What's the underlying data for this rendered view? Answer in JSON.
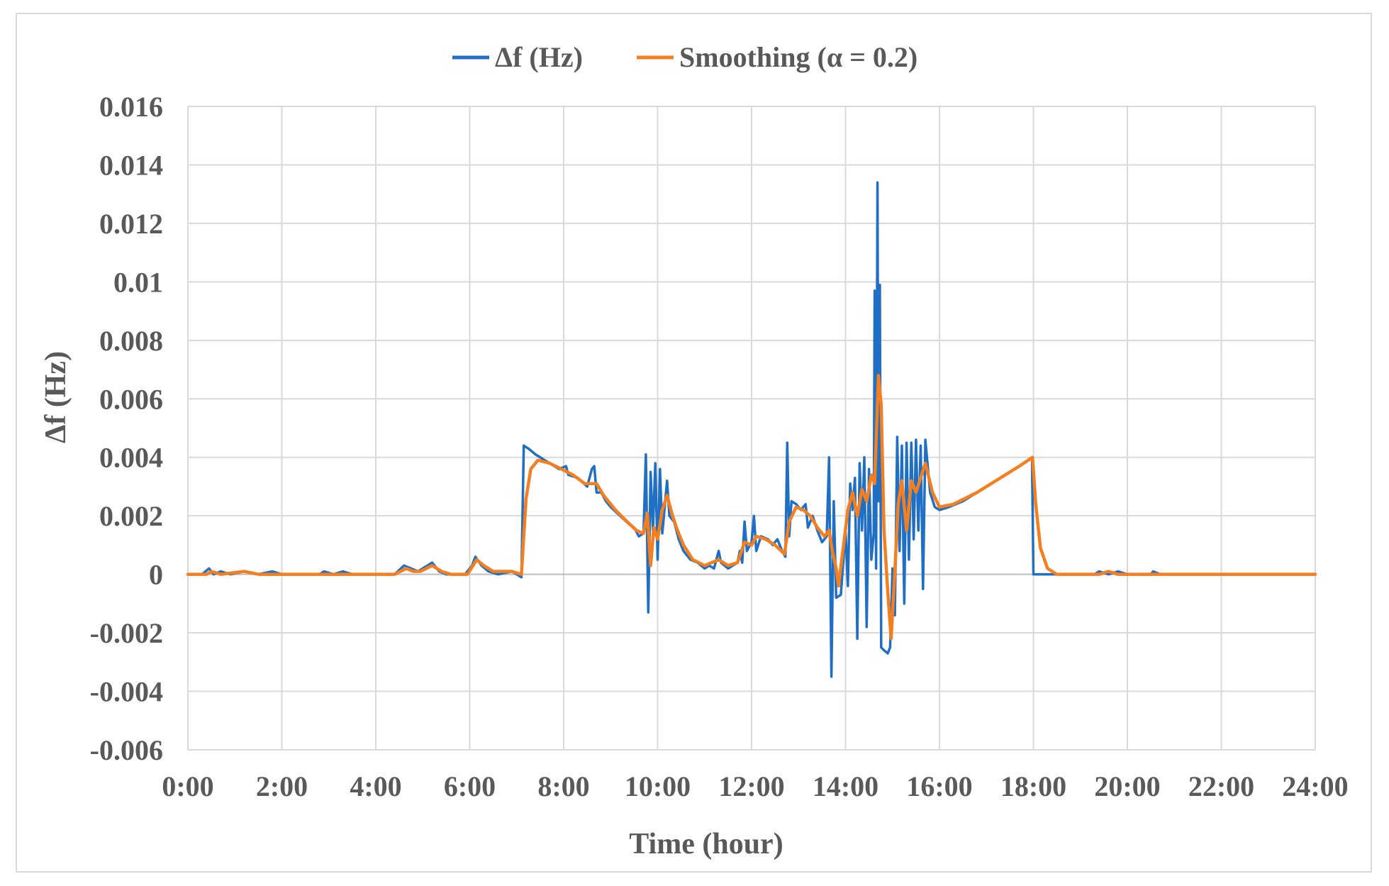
{
  "chart_data": {
    "type": "line",
    "title": "",
    "xlabel": "Time (hour)",
    "ylabel": "Δf (Hz)",
    "xlim": [
      0,
      24
    ],
    "ylim": [
      -0.006,
      0.016
    ],
    "x_ticks": [
      "0:00",
      "2:00",
      "4:00",
      "6:00",
      "8:00",
      "10:00",
      "12:00",
      "14:00",
      "16:00",
      "18:00",
      "20:00",
      "22:00",
      "24:00"
    ],
    "y_ticks": [
      "0.016",
      "0.014",
      "0.012",
      "0.01",
      "0.008",
      "0.006",
      "0.004",
      "0.002",
      "0",
      "-0.002",
      "-0.004",
      "-0.006"
    ],
    "y_tick_values": [
      0.016,
      0.014,
      0.012,
      0.01,
      0.008,
      0.006,
      0.004,
      0.002,
      0,
      -0.002,
      -0.004,
      -0.006
    ],
    "grid": true,
    "legend_position": "top",
    "series": [
      {
        "name": "Δf (Hz)",
        "color": "#1f6fc5",
        "points": [
          [
            0,
            0
          ],
          [
            0.3,
            0
          ],
          [
            0.45,
            0.0002
          ],
          [
            0.55,
            0
          ],
          [
            0.7,
            0.0001
          ],
          [
            0.9,
            0
          ],
          [
            1.2,
            0.0001
          ],
          [
            1.5,
            0
          ],
          [
            1.8,
            0.0001
          ],
          [
            2.0,
            0
          ],
          [
            2.8,
            0
          ],
          [
            2.9,
            0.0001
          ],
          [
            3.1,
            0
          ],
          [
            3.3,
            0.0001
          ],
          [
            3.5,
            0
          ],
          [
            4.0,
            0
          ],
          [
            4.4,
            0
          ],
          [
            4.6,
            0.0003
          ],
          [
            4.75,
            0.0002
          ],
          [
            4.9,
            0.0001
          ],
          [
            5.1,
            0.0003
          ],
          [
            5.2,
            0.0004
          ],
          [
            5.35,
            0.0001
          ],
          [
            5.5,
            0
          ],
          [
            5.9,
            0
          ],
          [
            6.05,
            0.0003
          ],
          [
            6.12,
            0.0006
          ],
          [
            6.25,
            0.0003
          ],
          [
            6.4,
            0.0001
          ],
          [
            6.6,
            0
          ],
          [
            6.9,
            0.0001
          ],
          [
            7.1,
            -0.0001
          ],
          [
            7.15,
            0.0044
          ],
          [
            7.25,
            0.0043
          ],
          [
            7.4,
            0.0041
          ],
          [
            7.6,
            0.0039
          ],
          [
            7.8,
            0.0037
          ],
          [
            7.9,
            0.0036
          ],
          [
            8.05,
            0.0037
          ],
          [
            8.1,
            0.0034
          ],
          [
            8.3,
            0.0033
          ],
          [
            8.5,
            0.003
          ],
          [
            8.6,
            0.0036
          ],
          [
            8.65,
            0.0037
          ],
          [
            8.7,
            0.0028
          ],
          [
            8.8,
            0.0028
          ],
          [
            8.9,
            0.0025
          ],
          [
            9.0,
            0.0023
          ],
          [
            9.2,
            0.002
          ],
          [
            9.4,
            0.0017
          ],
          [
            9.5,
            0.0016
          ],
          [
            9.6,
            0.0013
          ],
          [
            9.7,
            0.0014
          ],
          [
            9.75,
            0.0041
          ],
          [
            9.8,
            -0.0013
          ],
          [
            9.85,
            0.0035
          ],
          [
            9.9,
            0.0015
          ],
          [
            9.95,
            0.0038
          ],
          [
            10.0,
            0.0005
          ],
          [
            10.05,
            0.0036
          ],
          [
            10.1,
            0.0014
          ],
          [
            10.2,
            0.0032
          ],
          [
            10.25,
            0.002
          ],
          [
            10.35,
            0.0018
          ],
          [
            10.45,
            0.0012
          ],
          [
            10.55,
            0.0008
          ],
          [
            10.7,
            0.0005
          ],
          [
            10.85,
            0.0004
          ],
          [
            11.0,
            0.0002
          ],
          [
            11.1,
            0.0003
          ],
          [
            11.2,
            0.0002
          ],
          [
            11.3,
            0.0008
          ],
          [
            11.35,
            0.0004
          ],
          [
            11.5,
            0.0002
          ],
          [
            11.6,
            0.0003
          ],
          [
            11.7,
            0.0004
          ],
          [
            11.75,
            0.0008
          ],
          [
            11.8,
            0.0004
          ],
          [
            11.85,
            0.0018
          ],
          [
            11.9,
            0.0008
          ],
          [
            12.0,
            0.0011
          ],
          [
            12.05,
            0.002
          ],
          [
            12.1,
            0.0008
          ],
          [
            12.2,
            0.0013
          ],
          [
            12.35,
            0.0012
          ],
          [
            12.45,
            0.001
          ],
          [
            12.55,
            0.0012
          ],
          [
            12.65,
            0.0008
          ],
          [
            12.72,
            0.0006
          ],
          [
            12.76,
            0.0045
          ],
          [
            12.8,
            0.0013
          ],
          [
            12.85,
            0.0025
          ],
          [
            12.95,
            0.0024
          ],
          [
            13.05,
            0.0022
          ],
          [
            13.15,
            0.0024
          ],
          [
            13.2,
            0.0016
          ],
          [
            13.3,
            0.002
          ],
          [
            13.4,
            0.0015
          ],
          [
            13.5,
            0.0011
          ],
          [
            13.6,
            0.0013
          ],
          [
            13.65,
            0.004
          ],
          [
            13.7,
            -0.0035
          ],
          [
            13.75,
            0.0025
          ],
          [
            13.8,
            -0.0008
          ],
          [
            13.9,
            -0.0007
          ],
          [
            14.0,
            0.0015
          ],
          [
            14.05,
            -0.0004
          ],
          [
            14.1,
            0.0031
          ],
          [
            14.15,
            0.0022
          ],
          [
            14.2,
            0.0033
          ],
          [
            14.25,
            -0.0022
          ],
          [
            14.3,
            0.0038
          ],
          [
            14.35,
            0.0015
          ],
          [
            14.4,
            0.004
          ],
          [
            14.45,
            -0.0018
          ],
          [
            14.5,
            0.0036
          ],
          [
            14.55,
            0.0005
          ],
          [
            14.6,
            0.0014
          ],
          [
            14.62,
            0.0097
          ],
          [
            14.65,
            0.0002
          ],
          [
            14.68,
            0.0134
          ],
          [
            14.7,
            0.0025
          ],
          [
            14.73,
            0.0099
          ],
          [
            14.76,
            -0.0025
          ],
          [
            14.82,
            -0.0026
          ],
          [
            14.9,
            -0.0027
          ],
          [
            14.95,
            -0.0025
          ],
          [
            15.0,
            0.0002
          ],
          [
            15.05,
            -0.0014
          ],
          [
            15.1,
            0.0047
          ],
          [
            15.15,
            0.0008
          ],
          [
            15.2,
            0.0044
          ],
          [
            15.25,
            -0.001
          ],
          [
            15.3,
            0.0045
          ],
          [
            15.35,
            0.0005
          ],
          [
            15.4,
            0.0045
          ],
          [
            15.45,
            0.0012
          ],
          [
            15.5,
            0.0046
          ],
          [
            15.55,
            0.0015
          ],
          [
            15.6,
            0.0044
          ],
          [
            15.65,
            -0.0005
          ],
          [
            15.7,
            0.0046
          ],
          [
            15.8,
            0.0028
          ],
          [
            15.9,
            0.0023
          ],
          [
            16.0,
            0.0022
          ],
          [
            16.2,
            0.0023
          ],
          [
            16.5,
            0.0025
          ],
          [
            16.9,
            0.0029
          ],
          [
            17.3,
            0.0033
          ],
          [
            17.7,
            0.0037
          ],
          [
            17.97,
            0.004
          ],
          [
            18.0,
            0
          ],
          [
            19.3,
            0
          ],
          [
            19.4,
            0.0001
          ],
          [
            19.6,
            0
          ],
          [
            19.8,
            0.0001
          ],
          [
            20.0,
            0
          ],
          [
            20.5,
            0
          ],
          [
            20.55,
            0.0001
          ],
          [
            20.7,
            0
          ],
          [
            24.0,
            0
          ]
        ]
      },
      {
        "name": "Smoothing (α = 0.2)",
        "color": "#f47f20",
        "points": [
          [
            0,
            0
          ],
          [
            0.4,
            0
          ],
          [
            0.5,
            0.0001
          ],
          [
            0.7,
            0
          ],
          [
            1.2,
            0.0001
          ],
          [
            1.5,
            0
          ],
          [
            2.0,
            0
          ],
          [
            4.0,
            0
          ],
          [
            4.4,
            0
          ],
          [
            4.65,
            0.0002
          ],
          [
            4.8,
            0.0001
          ],
          [
            4.95,
            0.0001
          ],
          [
            5.2,
            0.0003
          ],
          [
            5.4,
            0.0001
          ],
          [
            5.6,
            0
          ],
          [
            5.95,
            0
          ],
          [
            6.15,
            0.0005
          ],
          [
            6.3,
            0.0003
          ],
          [
            6.5,
            0.0001
          ],
          [
            6.9,
            0.0001
          ],
          [
            7.1,
            0
          ],
          [
            7.2,
            0.0026
          ],
          [
            7.3,
            0.0036
          ],
          [
            7.45,
            0.0039
          ],
          [
            7.7,
            0.0038
          ],
          [
            7.95,
            0.0036
          ],
          [
            8.2,
            0.0034
          ],
          [
            8.45,
            0.0031
          ],
          [
            8.6,
            0.0031
          ],
          [
            8.7,
            0.0031
          ],
          [
            8.85,
            0.0027
          ],
          [
            9.1,
            0.0022
          ],
          [
            9.35,
            0.0018
          ],
          [
            9.55,
            0.0015
          ],
          [
            9.7,
            0.0014
          ],
          [
            9.78,
            0.0021
          ],
          [
            9.85,
            0.0003
          ],
          [
            9.92,
            0.0016
          ],
          [
            10.0,
            0.0012
          ],
          [
            10.1,
            0.0022
          ],
          [
            10.2,
            0.0027
          ],
          [
            10.3,
            0.0021
          ],
          [
            10.4,
            0.0016
          ],
          [
            10.55,
            0.001
          ],
          [
            10.75,
            0.0005
          ],
          [
            11.0,
            0.0003
          ],
          [
            11.3,
            0.0005
          ],
          [
            11.5,
            0.0003
          ],
          [
            11.7,
            0.0004
          ],
          [
            11.85,
            0.0011
          ],
          [
            12.0,
            0.001
          ],
          [
            12.1,
            0.0013
          ],
          [
            12.3,
            0.0012
          ],
          [
            12.5,
            0.001
          ],
          [
            12.7,
            0.0007
          ],
          [
            12.8,
            0.0018
          ],
          [
            12.95,
            0.0023
          ],
          [
            13.1,
            0.0022
          ],
          [
            13.25,
            0.002
          ],
          [
            13.4,
            0.0016
          ],
          [
            13.55,
            0.0013
          ],
          [
            13.65,
            0.0015
          ],
          [
            13.72,
            0.0008
          ],
          [
            13.8,
            0.0002
          ],
          [
            13.85,
            -0.0004
          ],
          [
            13.95,
            0.0009
          ],
          [
            14.05,
            0.0022
          ],
          [
            14.15,
            0.0028
          ],
          [
            14.25,
            0.002
          ],
          [
            14.35,
            0.0029
          ],
          [
            14.45,
            0.0025
          ],
          [
            14.55,
            0.0034
          ],
          [
            14.62,
            0.0031
          ],
          [
            14.7,
            0.0068
          ],
          [
            14.76,
            0.0058
          ],
          [
            14.82,
            0.0015
          ],
          [
            14.9,
            -0.0006
          ],
          [
            14.97,
            -0.0022
          ],
          [
            15.05,
            0.0001
          ],
          [
            15.12,
            0.0024
          ],
          [
            15.2,
            0.0032
          ],
          [
            15.3,
            0.0015
          ],
          [
            15.4,
            0.0032
          ],
          [
            15.5,
            0.0028
          ],
          [
            15.6,
            0.0033
          ],
          [
            15.7,
            0.0038
          ],
          [
            15.85,
            0.0028
          ],
          [
            16.0,
            0.0023
          ],
          [
            16.3,
            0.0024
          ],
          [
            16.8,
            0.0028
          ],
          [
            17.3,
            0.0033
          ],
          [
            17.7,
            0.0037
          ],
          [
            17.98,
            0.004
          ],
          [
            18.05,
            0.0024
          ],
          [
            18.15,
            0.0009
          ],
          [
            18.3,
            0.0002
          ],
          [
            18.5,
            0
          ],
          [
            19.4,
            0
          ],
          [
            19.6,
            0.0001
          ],
          [
            19.8,
            0
          ],
          [
            24.0,
            0
          ]
        ]
      }
    ]
  }
}
